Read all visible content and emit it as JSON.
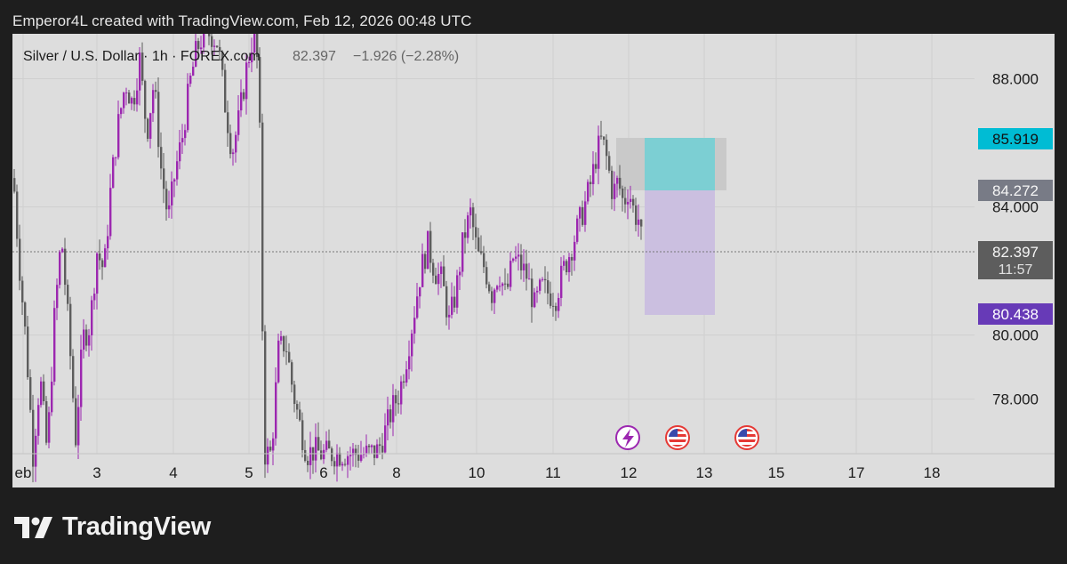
{
  "header": {
    "text": "Emperor4L created with TradingView.com, Feb 12, 2026 00:48 UTC"
  },
  "legend": {
    "symbol": "Silver / U.S. Dollar · 1h · FOREX.com",
    "last": "82.397",
    "change": "−1.926 (−2.28%)"
  },
  "footer": {
    "brand": "TradingView",
    "logo_icon": "tradingview-logo-icon"
  },
  "chart_data": {
    "type": "candlestick",
    "symbol": "Silver / U.S. Dollar",
    "interval": "1h",
    "y_axis": {
      "min": 76.3,
      "max": 89.4,
      "ticks": [
        88.0,
        84.0,
        80.0,
        78.0
      ],
      "tick_labels": [
        "88.000",
        "84.000",
        "80.000",
        "78.000"
      ]
    },
    "x_axis": {
      "ticks": [
        "eb",
        "3",
        "4",
        "5",
        "6",
        "8",
        "10",
        "11",
        "12",
        "13",
        "15",
        "17",
        "18"
      ]
    },
    "last_price": 82.397,
    "countdown": "11:57",
    "price_labels": [
      {
        "value": 85.919,
        "text": "85.919",
        "color": "#00bcd4",
        "role": "take-profit"
      },
      {
        "value": 84.272,
        "text": "84.272",
        "color": "#787b86",
        "role": "entry"
      },
      {
        "value": 82.397,
        "text": "82.397",
        "color": "#5d5d5d",
        "role": "last-price"
      },
      {
        "value": 80.438,
        "text": "80.438",
        "color": "#673ab7",
        "role": "stop-loss"
      }
    ],
    "position_tool": {
      "entry": 84.272,
      "target": 85.919,
      "stop": 80.438,
      "side": "long"
    },
    "events": [
      {
        "icon": "lightning-icon",
        "label": "12"
      },
      {
        "icon": "us-flag-icon",
        "label": "12-13"
      },
      {
        "icon": "us-flag-icon",
        "label": "13-15"
      }
    ],
    "colors": {
      "up": "#9c27b0",
      "down": "#5d5d5d",
      "background": "#dddddd",
      "grid": "#cfcfcf"
    },
    "grid": true,
    "series_path": [
      [
        0,
        84.9
      ],
      [
        6,
        82.4
      ],
      [
        14,
        79.8
      ],
      [
        22,
        76.3
      ],
      [
        30,
        78.7
      ],
      [
        38,
        76.3
      ],
      [
        46,
        80.5
      ],
      [
        54,
        83.1
      ],
      [
        62,
        80.2
      ],
      [
        70,
        76.8
      ],
      [
        78,
        79.9
      ],
      [
        86,
        80.3
      ],
      [
        94,
        82.6
      ],
      [
        102,
        82.0
      ],
      [
        110,
        84.8
      ],
      [
        118,
        86.6
      ],
      [
        126,
        87.9
      ],
      [
        134,
        87.2
      ],
      [
        142,
        88.6
      ],
      [
        150,
        86.3
      ],
      [
        158,
        87.9
      ],
      [
        166,
        85.2
      ],
      [
        174,
        83.6
      ],
      [
        182,
        85.1
      ],
      [
        190,
        86.2
      ],
      [
        198,
        87.8
      ],
      [
        206,
        88.9
      ],
      [
        214,
        89.4
      ],
      [
        222,
        89.4
      ],
      [
        230,
        89.1
      ],
      [
        238,
        87.2
      ],
      [
        246,
        85.7
      ],
      [
        254,
        86.8
      ],
      [
        262,
        88.3
      ],
      [
        270,
        89.4
      ],
      [
        276,
        88.2
      ],
      [
        282,
        76.3
      ],
      [
        290,
        76.3
      ],
      [
        298,
        79.5
      ],
      [
        306,
        79.8
      ],
      [
        314,
        78.3
      ],
      [
        322,
        77.2
      ],
      [
        330,
        76.3
      ],
      [
        338,
        76.4
      ],
      [
        346,
        76.3
      ],
      [
        380,
        76.3
      ],
      [
        400,
        76.3
      ],
      [
        410,
        76.4
      ],
      [
        418,
        77.0
      ],
      [
        426,
        77.7
      ],
      [
        434,
        78.2
      ],
      [
        442,
        79.3
      ],
      [
        450,
        80.6
      ],
      [
        458,
        82.0
      ],
      [
        466,
        82.8
      ],
      [
        474,
        82.0
      ],
      [
        482,
        81.7
      ],
      [
        490,
        80.4
      ],
      [
        498,
        81.4
      ],
      [
        506,
        83.0
      ],
      [
        514,
        83.8
      ],
      [
        522,
        82.5
      ],
      [
        530,
        82.1
      ],
      [
        538,
        81.3
      ],
      [
        546,
        82.0
      ],
      [
        554,
        81.2
      ],
      [
        562,
        82.4
      ],
      [
        570,
        82.2
      ],
      [
        578,
        81.8
      ],
      [
        586,
        80.9
      ],
      [
        594,
        81.5
      ],
      [
        602,
        81.3
      ],
      [
        610,
        81.2
      ],
      [
        618,
        82.0
      ],
      [
        626,
        82.6
      ],
      [
        634,
        83.3
      ],
      [
        642,
        84.0
      ],
      [
        650,
        84.8
      ],
      [
        656,
        85.7
      ],
      [
        662,
        86.1
      ],
      [
        668,
        85.4
      ],
      [
        674,
        84.4
      ],
      [
        680,
        84.8
      ],
      [
        686,
        84.1
      ],
      [
        692,
        84.6
      ],
      [
        698,
        83.8
      ],
      [
        704,
        83.6
      ],
      [
        708,
        82.4
      ]
    ]
  }
}
